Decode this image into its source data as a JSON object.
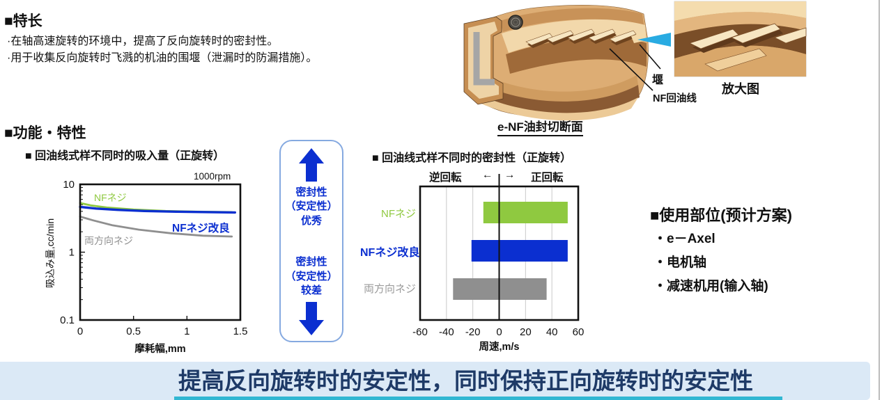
{
  "features": {
    "heading": "■特长",
    "bullets": [
      "·在轴高速旋转的环境中，提高了反向旋转时的密封性。",
      "·用于收集反向旋转时飞溅的机油的围堰（泄漏时的防漏措施）。"
    ]
  },
  "section2_heading": "■功能・特性",
  "illustration": {
    "caption": "e-NF油封切断面",
    "label_dam": "堰",
    "label_oil_return": "NF回油线",
    "label_magnified": "放大图"
  },
  "indicator": {
    "top_lines": [
      "密封性",
      "（安定性）",
      "优秀"
    ],
    "bottom_lines": [
      "密封性",
      "（安定性）",
      "较差"
    ],
    "arrow_color": "#0b2fd0"
  },
  "usage": {
    "heading": "■使用部位(预计方案)",
    "items": [
      "・e－Axel",
      "・电机轴",
      "・减速机用(输入轴)"
    ]
  },
  "banner": {
    "text": "提高反向旋转时的安定性，同时保持正向旋转时的安定性"
  },
  "colors": {
    "royal_blue": "#0b2fd0",
    "green": "#8fc940",
    "gray": "#8f8f8f",
    "banner_bg": "#dbe9f6",
    "banner_text": "#1e3a67",
    "cyan_bar": "#31b7d2",
    "box_border": "#85a9e0",
    "pointer_cyan": "#29abe2"
  },
  "chart_data": [
    {
      "type": "line",
      "title": "■ 回油线式样不同时的吸入量（正旋转）",
      "annotation": "1000rpm",
      "xlabel": "摩耗幅,mm",
      "ylabel": "吸込み量,cc/min",
      "xlim": [
        0,
        1.5
      ],
      "ylim": [
        0.1,
        10
      ],
      "yscale": "log",
      "xticks": [
        0,
        0.5,
        1,
        1.5
      ],
      "yticks": [
        10,
        1,
        0.1
      ],
      "grid": false,
      "legend_position": "inline",
      "series": [
        {
          "name": "NFネジ",
          "color": "#8fc940",
          "x": [
            0,
            0.1,
            0.25,
            0.5,
            0.8,
            1.1,
            1.42
          ],
          "y": [
            5.3,
            4.9,
            4.55,
            4.25,
            4.05,
            3.95,
            3.9
          ]
        },
        {
          "name": "両方向ネジ",
          "color": "#8f8f8f",
          "x": [
            0,
            0.12,
            0.3,
            0.55,
            0.85,
            1.15,
            1.42
          ],
          "y": [
            3.35,
            2.95,
            2.5,
            2.15,
            1.9,
            1.75,
            1.7
          ]
        },
        {
          "name": "NFネジ改良",
          "color": "#0b2fd0",
          "x": [
            0,
            0.15,
            0.35,
            0.6,
            0.9,
            1.2,
            1.45
          ],
          "y": [
            4.65,
            4.4,
            4.2,
            4.05,
            3.95,
            3.9,
            3.85
          ]
        }
      ]
    },
    {
      "type": "bar",
      "orientation": "horizontal-range",
      "title": "■ 回油线式样不同时的密封性（正旋转）",
      "xlabel": "周速,m/s",
      "xlim": [
        -60,
        60
      ],
      "xticks": [
        -60,
        -40,
        -20,
        0,
        20,
        40,
        60
      ],
      "grid": "vertical",
      "header": {
        "left": "逆回転",
        "arrow_left": "←",
        "arrow_right": "→",
        "right": "正回転"
      },
      "bars": [
        {
          "name": "NFネジ",
          "color": "#8fc940",
          "from": -12,
          "to": 52
        },
        {
          "name": "NFネジ改良",
          "color": "#0b2fd0",
          "from": -21,
          "to": 52
        },
        {
          "name": "両方向ネジ",
          "color": "#8f8f8f",
          "from": -35,
          "to": 36
        }
      ]
    }
  ]
}
